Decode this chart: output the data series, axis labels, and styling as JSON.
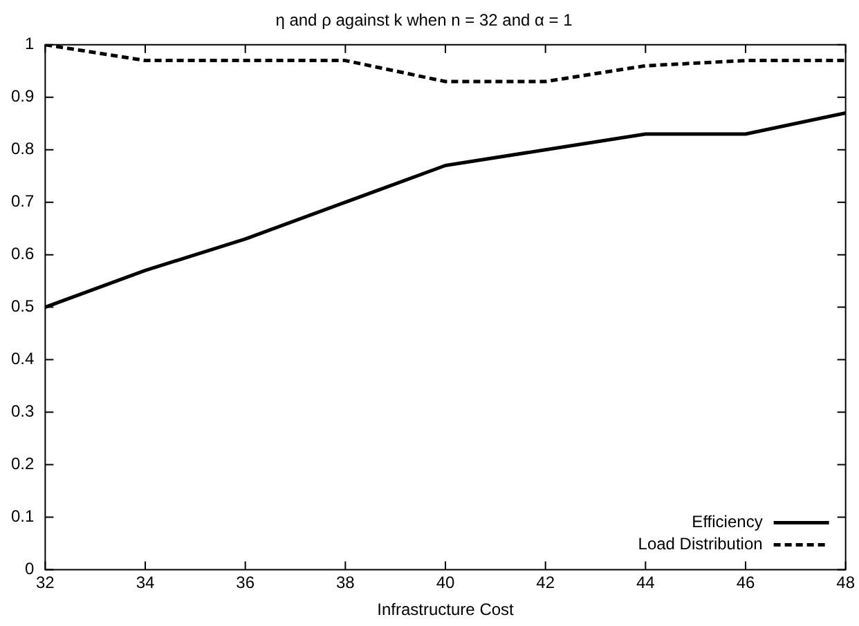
{
  "chart_data": {
    "type": "line",
    "title": "η and ρ against k when n = 32 and α = 1",
    "xlabel": "Infrastructure Cost",
    "x": [
      32,
      34,
      36,
      38,
      40,
      42,
      44,
      46,
      48
    ],
    "series": [
      {
        "name": "Efficiency",
        "color": "#000000",
        "line_style": "solid",
        "values": [
          0.5,
          0.57,
          0.63,
          0.7,
          0.77,
          0.8,
          0.83,
          0.83,
          0.87
        ]
      },
      {
        "name": "Load Distribution",
        "color": "#000000",
        "line_style": "dashed",
        "values": [
          1.0,
          0.97,
          0.97,
          0.97,
          0.93,
          0.93,
          0.96,
          0.97,
          0.97
        ]
      }
    ],
    "xlim": [
      32,
      48
    ],
    "xticks": [
      32,
      34,
      36,
      38,
      40,
      42,
      44,
      46,
      48
    ],
    "ylim": [
      0,
      1
    ],
    "yticks": [
      0,
      0.1,
      0.2,
      0.3,
      0.4,
      0.5,
      0.6,
      0.7,
      0.8,
      0.9,
      1
    ],
    "grid": false,
    "legend": "bottom right",
    "marker": "none"
  }
}
